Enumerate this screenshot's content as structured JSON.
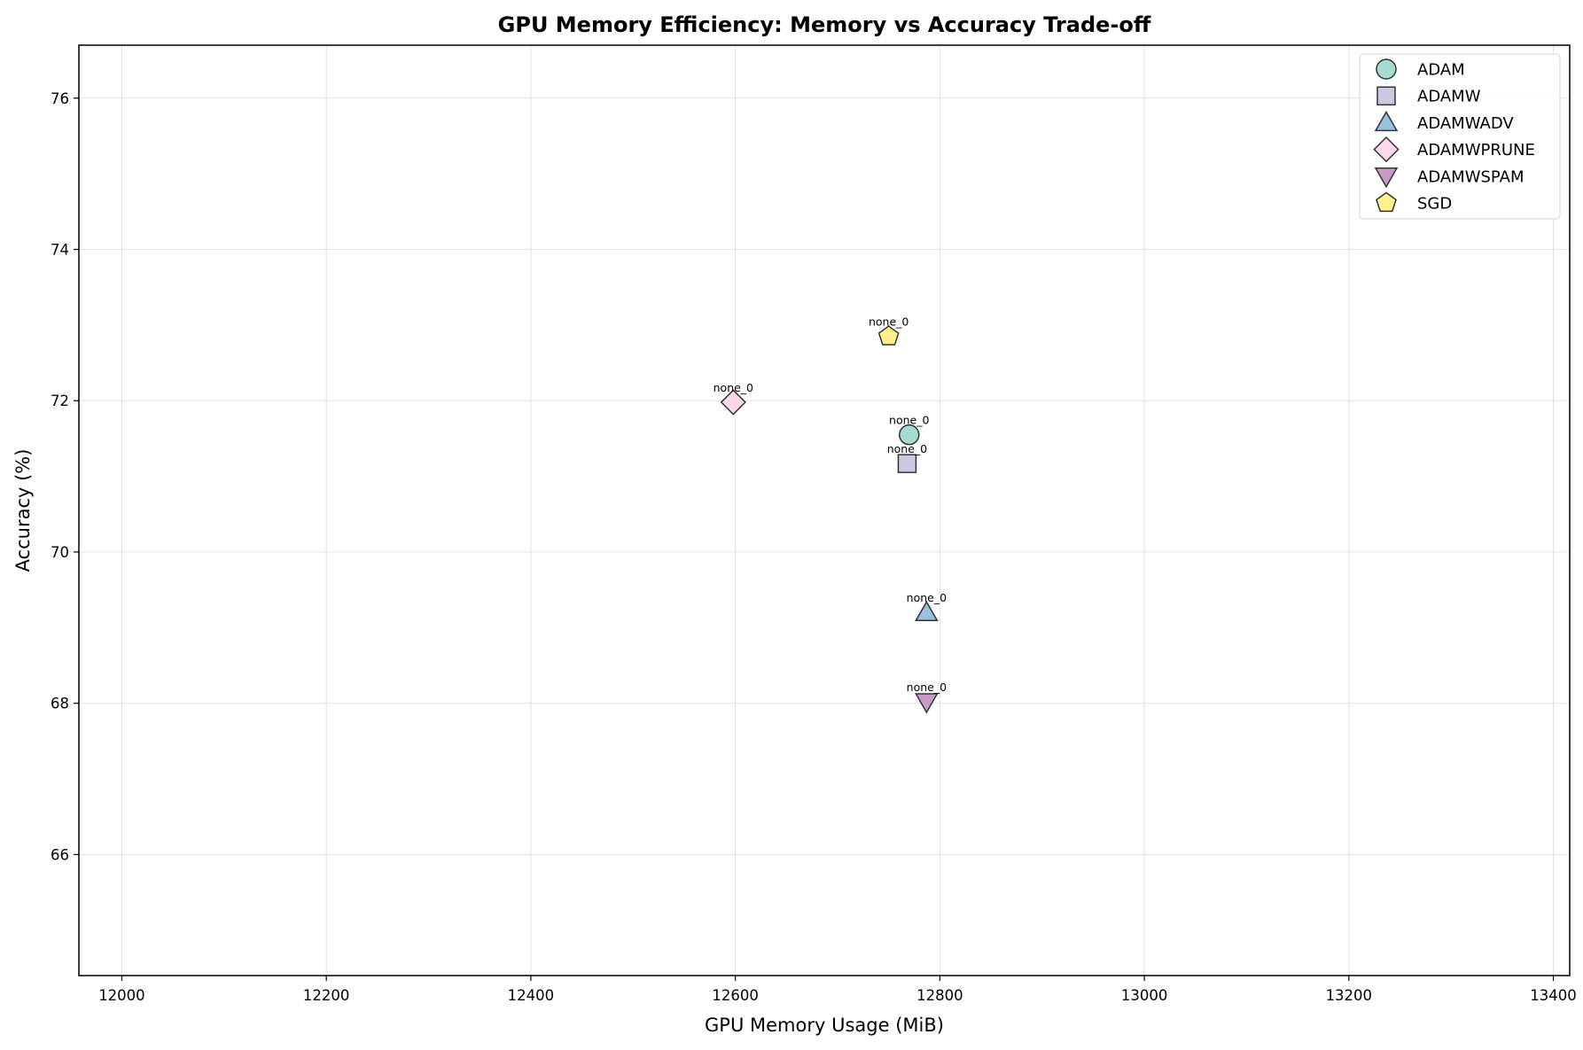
{
  "chart_data": {
    "type": "scatter",
    "title": "GPU Memory Efficiency: Memory vs Accuracy Trade-off",
    "xlabel": "GPU Memory Usage (MiB)",
    "ylabel": "Accuracy (%)",
    "xlim": [
      11958,
      13416
    ],
    "ylim": [
      64.4,
      76.7
    ],
    "xticks": [
      12000,
      12200,
      12400,
      12600,
      12800,
      13000,
      13200,
      13400
    ],
    "yticks": [
      66,
      68,
      70,
      72,
      74,
      76
    ],
    "grid": true,
    "legend_position": "top-right",
    "series": [
      {
        "name": "ADAM",
        "marker": "circle",
        "color": "#8dd3c7",
        "points": [
          {
            "x": 12770,
            "y": 71.55,
            "label": "none_0"
          }
        ]
      },
      {
        "name": "ADAMW",
        "marker": "square",
        "color": "#bebada",
        "points": [
          {
            "x": 12768,
            "y": 71.17,
            "label": "none_0"
          }
        ]
      },
      {
        "name": "ADAMWADV",
        "marker": "triangle-up",
        "color": "#80b1d3",
        "points": [
          {
            "x": 12787,
            "y": 69.2,
            "label": "none_0"
          }
        ]
      },
      {
        "name": "ADAMWPRUNE",
        "marker": "diamond",
        "color": "#fccde5",
        "points": [
          {
            "x": 12598,
            "y": 71.98,
            "label": "none_0"
          }
        ]
      },
      {
        "name": "ADAMWSPAM",
        "marker": "triangle-down",
        "color": "#bc80bd",
        "points": [
          {
            "x": 12787,
            "y": 68.02,
            "label": "none_0"
          }
        ]
      },
      {
        "name": "SGD",
        "marker": "pentagon",
        "color": "#ffed6f",
        "points": [
          {
            "x": 12750,
            "y": 72.85,
            "label": "none_0"
          }
        ]
      }
    ]
  }
}
